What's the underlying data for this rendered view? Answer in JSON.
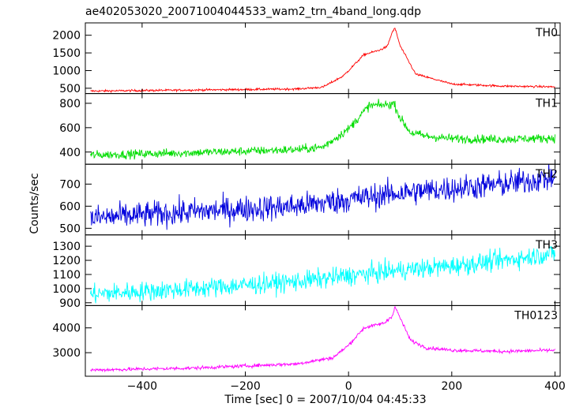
{
  "chart_data": {
    "type": "line",
    "title": "ae402053020_20071004044533_wam2_trn_4band_long.qdp",
    "xlabel": "Time [sec] 0 = 2007/10/04 04:45:33",
    "ylabel": "Counts/sec",
    "xlim": [
      -510,
      410
    ],
    "x_ticks": [
      -400,
      -200,
      0,
      200,
      400
    ],
    "x_tick_labels": [
      "−400",
      "−200",
      "0",
      "200",
      "400"
    ],
    "panels": [
      {
        "name": "TH0",
        "color": "#ff0000",
        "ylim": [
          350,
          2350
        ],
        "y_ticks": [
          500,
          1000,
          1500,
          2000
        ],
        "y_tick_labels": [
          "500",
          "1000",
          "1500",
          "2000"
        ],
        "noise": 15,
        "shape": {
          "x": [
            -500,
            -300,
            -100,
            -50,
            -10,
            30,
            60,
            75,
            85,
            90,
            100,
            130,
            200,
            300,
            400
          ],
          "y": [
            420,
            450,
            480,
            530,
            850,
            1450,
            1580,
            1680,
            2100,
            2200,
            1700,
            900,
            620,
            560,
            540
          ]
        }
      },
      {
        "name": "TH1",
        "color": "#00dd00",
        "ylim": [
          300,
          880
        ],
        "y_ticks": [
          400,
          600,
          800
        ],
        "y_tick_labels": [
          "400",
          "600",
          "800"
        ],
        "noise": 18,
        "shape": {
          "x": [
            -500,
            -300,
            -100,
            -50,
            0,
            40,
            80,
            88,
            100,
            120,
            150,
            200,
            300,
            400
          ],
          "y": [
            375,
            395,
            420,
            440,
            590,
            780,
            790,
            800,
            680,
            560,
            530,
            510,
            505,
            515
          ]
        }
      },
      {
        "name": "TH2",
        "color": "#0000dd",
        "ylim": [
          470,
          790
        ],
        "y_ticks": [
          500,
          600,
          700
        ],
        "y_tick_labels": [
          "500",
          "600",
          "700"
        ],
        "noise": 30,
        "shape": {
          "x": [
            -500,
            -300,
            -100,
            0,
            100,
            200,
            300,
            400
          ],
          "y": [
            545,
            575,
            600,
            630,
            660,
            680,
            700,
            730
          ]
        }
      },
      {
        "name": "TH3",
        "color": "#00ffff",
        "ylim": [
          880,
          1380
        ],
        "y_ticks": [
          900,
          1000,
          1100,
          1200,
          1300
        ],
        "y_tick_labels": [
          "900",
          "1000",
          "1100",
          "1200",
          "1300"
        ],
        "noise": 35,
        "shape": {
          "x": [
            -500,
            -300,
            -100,
            0,
            100,
            200,
            300,
            400
          ],
          "y": [
            960,
            1000,
            1050,
            1090,
            1130,
            1160,
            1200,
            1250
          ]
        }
      },
      {
        "name": "TH0123",
        "color": "#ff00ff",
        "ylim": [
          2050,
          4900
        ],
        "y_ticks": [
          3000,
          4000
        ],
        "y_tick_labels": [
          "3000",
          "4000"
        ],
        "noise": 35,
        "shape": {
          "x": [
            -500,
            -300,
            -100,
            -30,
            0,
            30,
            70,
            85,
            90,
            100,
            120,
            150,
            200,
            300,
            400
          ],
          "y": [
            2300,
            2380,
            2550,
            2800,
            3300,
            4000,
            4200,
            4500,
            4850,
            4400,
            3500,
            3200,
            3100,
            3050,
            3100
          ]
        }
      }
    ]
  }
}
